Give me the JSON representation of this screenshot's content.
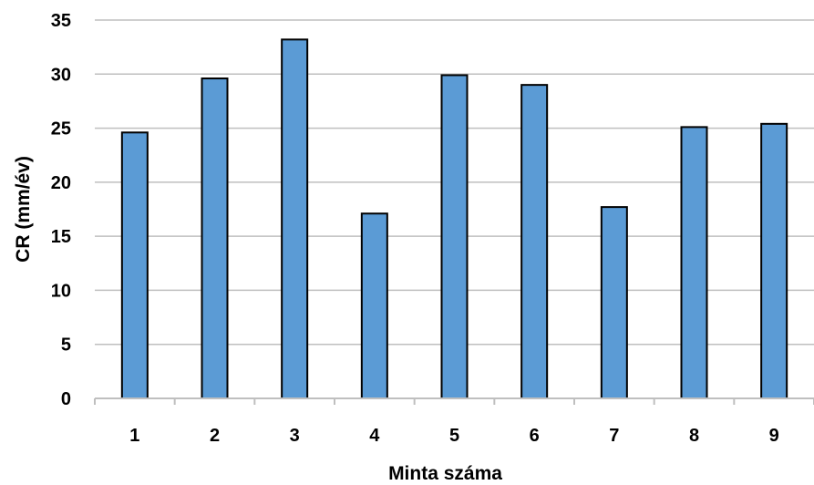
{
  "chart_data": {
    "type": "bar",
    "title": "",
    "xlabel": "Minta száma",
    "ylabel": "CR (mm/év)",
    "categories": [
      "1",
      "2",
      "3",
      "4",
      "5",
      "6",
      "7",
      "8",
      "9"
    ],
    "values": [
      24.6,
      29.6,
      33.2,
      17.1,
      29.9,
      29.0,
      17.7,
      25.1,
      25.4
    ],
    "ylim": [
      0,
      35
    ],
    "yticks": [
      "0",
      "5",
      "10",
      "15",
      "20",
      "25",
      "30",
      "35"
    ],
    "grid": true,
    "legend": "none",
    "bar_color": "#5b9bd5",
    "bar_edge_color": "#000000",
    "grid_color": "#bfbfbf"
  }
}
